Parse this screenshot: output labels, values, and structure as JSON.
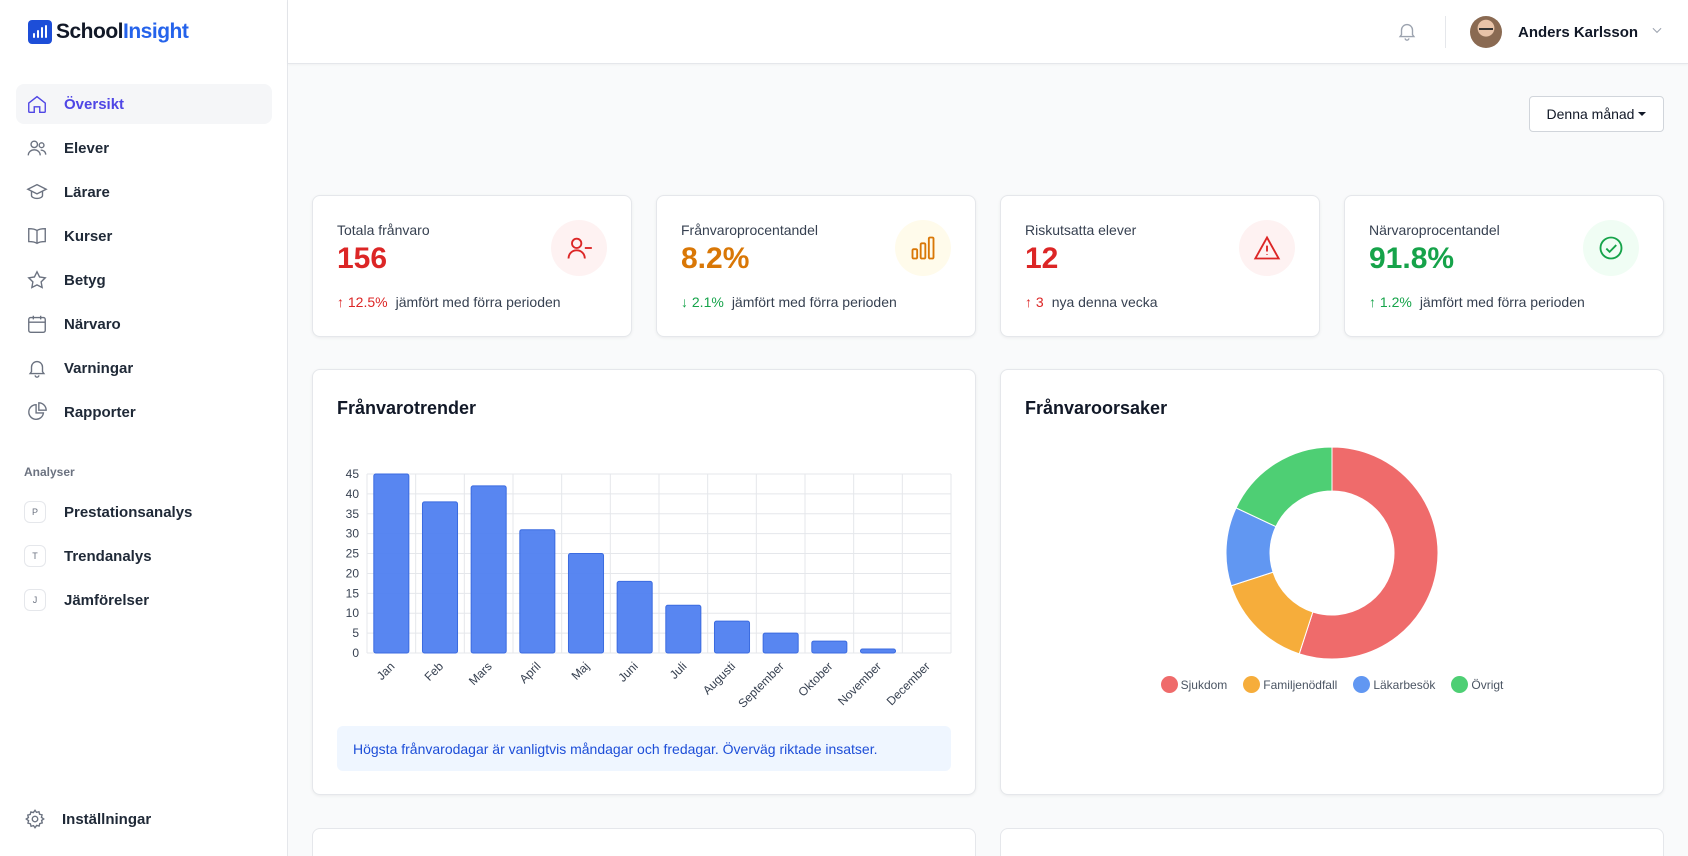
{
  "brand": {
    "name_part1": "School",
    "name_part2": "Insight"
  },
  "sidebar": {
    "items": [
      {
        "label": "Översikt",
        "icon": "home-icon",
        "active": true
      },
      {
        "label": "Elever",
        "icon": "users-icon"
      },
      {
        "label": "Lärare",
        "icon": "graduation-cap-icon"
      },
      {
        "label": "Kurser",
        "icon": "book-icon"
      },
      {
        "label": "Betyg",
        "icon": "star-icon"
      },
      {
        "label": "Närvaro",
        "icon": "calendar-icon"
      },
      {
        "label": "Varningar",
        "icon": "bell-icon"
      },
      {
        "label": "Rapporter",
        "icon": "pie-chart-icon"
      }
    ],
    "section_label": "Analyser",
    "analysis_items": [
      {
        "letter": "P",
        "label": "Prestationsanalys"
      },
      {
        "letter": "T",
        "label": "Trendanalys"
      },
      {
        "letter": "J",
        "label": "Jämförelser"
      }
    ],
    "settings_label": "Inställningar"
  },
  "header": {
    "user_name": "Anders Karlsson"
  },
  "period_select": {
    "value": "Denna månad"
  },
  "stats": [
    {
      "label": "Totala frånvaro",
      "value": "156",
      "value_color": "#dc2626",
      "icon": "user-minus-icon",
      "icon_color": "#dc2626",
      "icon_bg": "#fef2f2",
      "delta": "↑ 12.5%",
      "delta_color": "#dc2626",
      "note": "jämfört med förra perioden"
    },
    {
      "label": "Frånvaroprocentandel",
      "value": "8.2%",
      "value_color": "#d97706",
      "icon": "bar-chart-icon",
      "icon_color": "#d97706",
      "icon_bg": "#fffbeb",
      "delta": "↓ 2.1%",
      "delta_color": "#16a34a",
      "note": "jämfört med förra perioden"
    },
    {
      "label": "Riskutsatta elever",
      "value": "12",
      "value_color": "#dc2626",
      "icon": "warning-triangle-icon",
      "icon_color": "#dc2626",
      "icon_bg": "#fef2f2",
      "delta": "↑ 3",
      "delta_color": "#dc2626",
      "note": "nya denna vecka"
    },
    {
      "label": "Närvaroprocentandel",
      "value": "91.8%",
      "value_color": "#16a34a",
      "icon": "check-circle-icon",
      "icon_color": "#16a34a",
      "icon_bg": "#f0fdf4",
      "delta": "↑ 1.2%",
      "delta_color": "#16a34a",
      "note": "jämfört med förra perioden"
    }
  ],
  "trend_card": {
    "title": "Frånvarotrender",
    "insight": "Högsta frånvarodagar är vanligtvis måndagar och fredagar. Överväg riktade insatser."
  },
  "causes_card": {
    "title": "Frånvaroorsaker"
  },
  "chart_data": [
    {
      "type": "bar",
      "categories": [
        "Jan",
        "Feb",
        "Mars",
        "April",
        "Maj",
        "Juni",
        "Juli",
        "Augusti",
        "September",
        "Oktober",
        "November",
        "December"
      ],
      "values": [
        45,
        38,
        42,
        31,
        25,
        18,
        12,
        8,
        5,
        3,
        1,
        0
      ],
      "ylim": [
        0,
        45
      ],
      "yticks": [
        0,
        5,
        10,
        15,
        20,
        25,
        30,
        35,
        40,
        45
      ],
      "color": "#4f7ff0",
      "grid": true
    },
    {
      "type": "pie",
      "variant": "doughnut",
      "labels": [
        "Sjukdom",
        "Familjenödfall",
        "Läkarbesök",
        "Övrigt"
      ],
      "values": [
        55,
        15,
        12,
        18
      ],
      "colors": [
        "#ef6b6b",
        "#f6ad3b",
        "#6197f2",
        "#4ecf74"
      ],
      "legend": "bottom"
    }
  ]
}
